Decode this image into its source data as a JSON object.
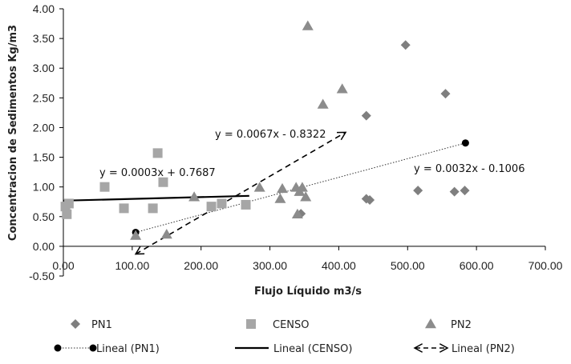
{
  "chart_data": {
    "type": "scatter",
    "title": "",
    "xlabel": "Flujo Líquido m3/s",
    "ylabel": "Concentracion de Sedimentos Kg/m3",
    "xlim": [
      0,
      700
    ],
    "ylim": [
      -0.5,
      4.0
    ],
    "x_ticks": [
      0,
      100,
      200,
      300,
      400,
      500,
      600,
      700
    ],
    "x_tick_labels": [
      "0.00",
      "100.00",
      "200.00",
      "300.00",
      "400.00",
      "500.00",
      "600.00",
      "700.00"
    ],
    "y_ticks": [
      -0.5,
      0,
      0.5,
      1.0,
      1.5,
      2.0,
      2.5,
      3.0,
      3.5,
      4.0
    ],
    "y_tick_labels": [
      "-0.50",
      "0.00",
      "0.50",
      "1.00",
      "1.50",
      "2.00",
      "2.50",
      "3.00",
      "3.50",
      "4.00"
    ],
    "grid": false,
    "series": [
      {
        "name": "PN1",
        "marker": "diamond",
        "color": "#7f7f7f",
        "x": [
          497,
          440,
          555,
          440,
          445,
          515,
          568,
          583,
          345
        ],
        "y": [
          3.39,
          2.2,
          2.57,
          0.8,
          0.78,
          0.94,
          0.92,
          0.94,
          0.55
        ]
      },
      {
        "name": "CENSO",
        "marker": "square",
        "color": "#a6a6a6",
        "x": [
          3,
          8,
          5,
          60,
          88,
          130,
          137,
          145,
          215,
          230,
          265
        ],
        "y": [
          0.67,
          0.72,
          0.54,
          1.0,
          0.64,
          0.64,
          1.57,
          1.08,
          0.67,
          0.72,
          0.7
        ]
      },
      {
        "name": "PN2",
        "marker": "triangle",
        "color": "#8c8c8c",
        "x": [
          355,
          405,
          377,
          190,
          285,
          318,
          315,
          338,
          343,
          347,
          352,
          340,
          105,
          150
        ],
        "y": [
          3.71,
          2.65,
          2.39,
          0.83,
          0.99,
          0.97,
          0.8,
          0.99,
          0.92,
          0.99,
          0.83,
          0.54,
          0.18,
          0.2
        ]
      }
    ],
    "trendlines": [
      {
        "name": "Lineal (PN1)",
        "style": "dotted",
        "color": "#333333",
        "end_markers": "circle",
        "x": [
          105,
          584
        ],
        "y": [
          0.235,
          1.74
        ],
        "equation": "y = 0.0032x - 0.1006"
      },
      {
        "name": "Lineal (CENSO)",
        "style": "solid",
        "color": "#000000",
        "x": [
          0,
          270
        ],
        "y": [
          0.7687,
          0.8497
        ],
        "equation": "y = 0.0003x + 0.7687"
      },
      {
        "name": "Lineal (PN2)",
        "style": "dashed",
        "color": "#000000",
        "end_markers": "arrows",
        "x": [
          105,
          410
        ],
        "y": [
          -0.13,
          1.92
        ],
        "equation": "y = 0.0067x - 0.8322"
      }
    ],
    "legend_position": "bottom",
    "legend_entries": [
      "PN1",
      "CENSO",
      "PN2",
      "Lineal (PN1)",
      "Lineal (CENSO)",
      "Lineal (PN2)"
    ]
  }
}
